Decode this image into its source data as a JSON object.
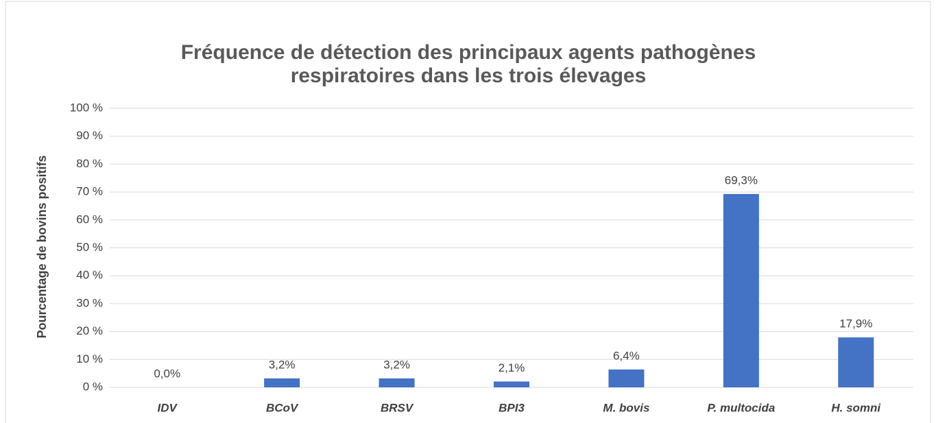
{
  "chart_data": {
    "type": "bar",
    "title": [
      "Fréquence de détection des principaux agents pathogènes",
      "respiratoires dans les trois élevages"
    ],
    "y_label": "Pourcentage de bovins positifs",
    "categories": [
      "IDV",
      "BCoV",
      "BRSV",
      "BPI3",
      "M. bovis",
      "P. multocida",
      "H. somni"
    ],
    "values": [
      0,
      3.2,
      3.2,
      2.1,
      6.4,
      69.3,
      17.9
    ],
    "value_labels": [
      "0,0%",
      "3,2%",
      "3,2%",
      "2,1%",
      "6,4%",
      "69,3%",
      "17,9%"
    ],
    "color": "#4472c4",
    "ylim": [
      0,
      100
    ],
    "yticks": [
      {
        "value": 0,
        "label": "0 %"
      },
      {
        "value": 10,
        "label": "10 %"
      },
      {
        "value": 20,
        "label": "20 %"
      },
      {
        "value": 30,
        "label": "30 %"
      },
      {
        "value": 40,
        "label": "40 %"
      },
      {
        "value": 50,
        "label": "50 %"
      },
      {
        "value": 60,
        "label": "60 %"
      },
      {
        "value": 70,
        "label": "70 %"
      },
      {
        "value": 80,
        "label": "80 %"
      },
      {
        "value": 90,
        "label": "90 %"
      },
      {
        "value": 100,
        "label": "100 %"
      }
    ],
    "grid": true
  }
}
